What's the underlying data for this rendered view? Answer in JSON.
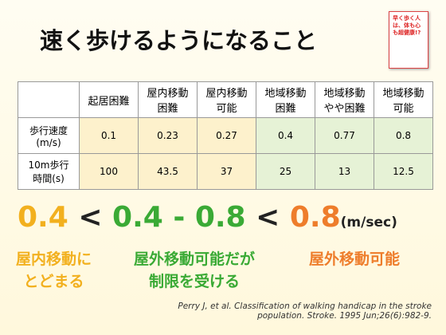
{
  "title": "速く歩けるようになること",
  "book": {
    "title": "早く歩く人は、体も心も超健康!?"
  },
  "table": {
    "header": [
      "起居困難",
      "屋内移動\n困難",
      "屋内移動\n可能",
      "地域移動\n困難",
      "地域移動\nやや困難",
      "地域移動\n可能"
    ],
    "rows": [
      [
        "歩行速度\n(m/s)",
        "0.1",
        "0.23",
        "0.27",
        "0.4",
        "0.77",
        "0.8"
      ],
      [
        "10m歩行\n時間(s)",
        "100",
        "43.5",
        "37",
        "25",
        "13",
        "12.5"
      ]
    ]
  },
  "speeds": {
    "low": "0.4",
    "lt1": "<",
    "mid": "0.4 - 0.8",
    "lt2": "<",
    "high": "0.8",
    "unit": "(m/sec)"
  },
  "labels": {
    "low": "屋内移動に\nとどまる",
    "mid": "屋外移動可能だが\n制限を受ける",
    "high": "屋外移動可能"
  },
  "citation": "Perry J, et al. Classification of walking handicap in the stroke\npopulation. Stroke. 1995 Jun;26(6):982-9."
}
